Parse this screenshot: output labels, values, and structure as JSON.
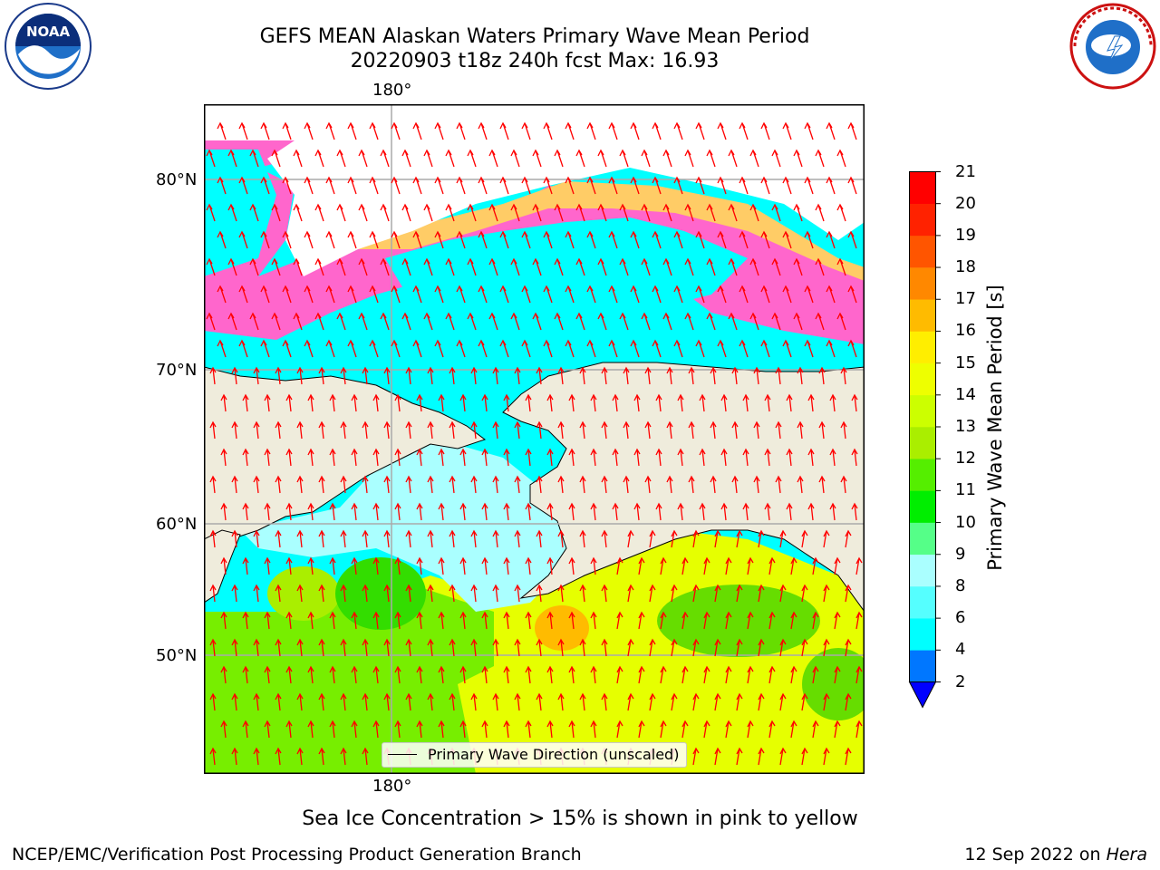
{
  "header": {
    "title_line1": "GEFS MEAN Alaskan Waters Primary Wave Mean Period",
    "title_line2": "20220903 t18z 240h fcst   Max: 16.93"
  },
  "logos": {
    "noaa": {
      "text": "NOAA",
      "ring_text": "NATIONAL OCEANIC AND ATMOSPHERIC ADMINISTRATION · U.S. DEPARTMENT OF COMMERCE",
      "icon": "noaa-logo-icon"
    },
    "nws": {
      "ring_text": "NATIONAL WEATHER SERVICE",
      "icon": "nws-logo-icon"
    }
  },
  "map": {
    "top_lon_label": "180°",
    "bottom_lon_label": "180°",
    "lat_labels": [
      "80°N",
      "70°N",
      "60°N",
      "50°N"
    ],
    "legend_label": "Primary Wave Direction (unscaled)",
    "land_color": "#efecdc",
    "arrow_color": "#ff0000"
  },
  "colorbar": {
    "title": "Primary Wave Mean Period [s]",
    "ticks": [
      "2",
      "4",
      "6",
      "8",
      "9",
      "10",
      "11",
      "12",
      "13",
      "14",
      "15",
      "16",
      "17",
      "18",
      "19",
      "20",
      "21"
    ],
    "colors": [
      "#0000ff",
      "#0077ff",
      "#00ffff",
      "#55ffff",
      "#aaffff",
      "#55ff88",
      "#00ee00",
      "#55ee00",
      "#aaee00",
      "#ccff00",
      "#eeff00",
      "#ffee00",
      "#ffbb00",
      "#ff8800",
      "#ff5500",
      "#ff2200",
      "#ff0000"
    ]
  },
  "notes": {
    "sea_ice": "Sea Ice Concentration > 15% is shown in pink to yellow"
  },
  "footer": {
    "left": "NCEP/EMC/Verification Post Processing Product Generation Branch",
    "date": "12 Sep 2022 on ",
    "host": "Hera"
  }
}
